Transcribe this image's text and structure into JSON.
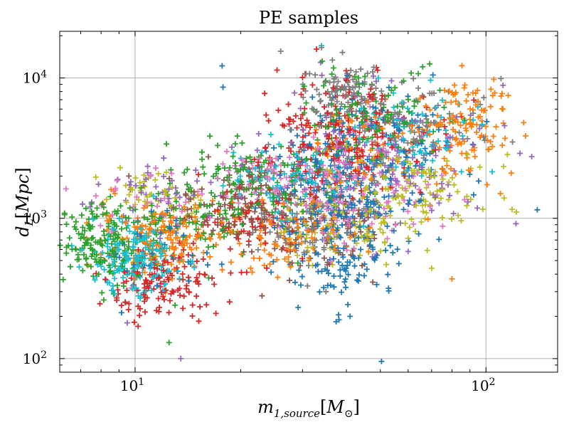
{
  "chart_data": {
    "type": "scatter",
    "title": "PE samples",
    "xlabel": "m_1,source [M_⊙]",
    "ylabel": "d_L [Mpc]",
    "xscale": "log",
    "yscale": "log",
    "xlim": [
      6.1,
      160
    ],
    "ylim": [
      80,
      21500
    ],
    "grid": true,
    "marker": "+",
    "x_ticks": [
      {
        "base": "10",
        "exp": "1",
        "value": 10
      },
      {
        "base": "10",
        "exp": "2",
        "value": 100
      }
    ],
    "y_ticks": [
      {
        "base": "10",
        "exp": "2",
        "value": 100
      },
      {
        "base": "10",
        "exp": "3",
        "value": 1000
      },
      {
        "base": "10",
        "exp": "4",
        "value": 10000
      }
    ],
    "series": [
      {
        "color": "#1f77b4",
        "clusters": [
          {
            "cx": 37,
            "cy": 1200,
            "sx": 0.1,
            "sy": 0.3,
            "n": 230
          },
          {
            "cx": 45,
            "cy": 2800,
            "sx": 0.12,
            "sy": 0.25,
            "n": 140
          },
          {
            "cx": 40,
            "cy": 450,
            "sx": 0.06,
            "sy": 0.12,
            "n": 50
          },
          {
            "cx": 12,
            "cy": 600,
            "sx": 0.1,
            "sy": 0.15,
            "n": 35
          }
        ],
        "points": [
          [
            17.7,
            12200
          ],
          [
            17.8,
            8600
          ],
          [
            41,
            200
          ],
          [
            38,
            205
          ],
          [
            140,
            1150
          ]
        ]
      },
      {
        "color": "#ff7f0e",
        "clusters": [
          {
            "cx": 85,
            "cy": 4500,
            "sx": 0.07,
            "sy": 0.16,
            "n": 120
          },
          {
            "cx": 12,
            "cy": 750,
            "sx": 0.09,
            "sy": 0.12,
            "n": 170
          },
          {
            "cx": 28,
            "cy": 800,
            "sx": 0.1,
            "sy": 0.14,
            "n": 90
          },
          {
            "cx": 45,
            "cy": 3000,
            "sx": 0.1,
            "sy": 0.2,
            "n": 80
          }
        ],
        "points": [
          [
            128,
            4800
          ],
          [
            118,
            2100
          ],
          [
            110,
            1500
          ],
          [
            80,
            370
          ],
          [
            102,
            3100
          ]
        ]
      },
      {
        "color": "#2ca02c",
        "clusters": [
          {
            "cx": 8,
            "cy": 650,
            "sx": 0.06,
            "sy": 0.14,
            "n": 170
          },
          {
            "cx": 22,
            "cy": 1800,
            "sx": 0.1,
            "sy": 0.15,
            "n": 130
          },
          {
            "cx": 48,
            "cy": 5500,
            "sx": 0.1,
            "sy": 0.16,
            "n": 110
          },
          {
            "cx": 14,
            "cy": 1000,
            "sx": 0.1,
            "sy": 0.14,
            "n": 80
          }
        ],
        "points": [
          [
            12.5,
            130
          ],
          [
            13,
            240
          ],
          [
            7,
            720
          ],
          [
            66,
            12000
          ]
        ]
      },
      {
        "color": "#d62728",
        "clusters": [
          {
            "cx": 12,
            "cy": 350,
            "sx": 0.07,
            "sy": 0.12,
            "n": 130
          },
          {
            "cx": 40,
            "cy": 4000,
            "sx": 0.11,
            "sy": 0.2,
            "n": 220
          },
          {
            "cx": 22,
            "cy": 1000,
            "sx": 0.1,
            "sy": 0.16,
            "n": 90
          }
        ],
        "points": [
          [
            10.2,
            170
          ],
          [
            11.5,
            220
          ],
          [
            17,
            210
          ]
        ]
      },
      {
        "color": "#9467bd",
        "clusters": [
          {
            "cx": 50,
            "cy": 2600,
            "sx": 0.14,
            "sy": 0.25,
            "n": 130
          },
          {
            "cx": 11,
            "cy": 1500,
            "sx": 0.1,
            "sy": 0.13,
            "n": 45
          }
        ],
        "points": [
          [
            13.5,
            100
          ],
          [
            9.5,
            180
          ],
          [
            135,
            2750
          ],
          [
            60,
            580
          ],
          [
            125,
            2900
          ]
        ]
      },
      {
        "color": "#8c564b",
        "clusters": [
          {
            "cx": 20,
            "cy": 1200,
            "sx": 0.09,
            "sy": 0.14,
            "n": 110
          },
          {
            "cx": 35,
            "cy": 900,
            "sx": 0.08,
            "sy": 0.16,
            "n": 70
          }
        ],
        "points": [
          [
            23,
            280
          ],
          [
            9.6,
            2000
          ],
          [
            9.7,
            1600
          ]
        ]
      },
      {
        "color": "#e377c2",
        "clusters": [
          {
            "cx": 40,
            "cy": 1800,
            "sx": 0.12,
            "sy": 0.22,
            "n": 160
          },
          {
            "cx": 25,
            "cy": 2000,
            "sx": 0.1,
            "sy": 0.1,
            "n": 40
          },
          {
            "cx": 11,
            "cy": 1200,
            "sx": 0.09,
            "sy": 0.12,
            "n": 35
          }
        ],
        "points": [
          [
            60,
            2200
          ],
          [
            27,
            1950
          ]
        ]
      },
      {
        "color": "#7f7f7f",
        "clusters": [
          {
            "cx": 38,
            "cy": 8000,
            "sx": 0.05,
            "sy": 0.08,
            "n": 70
          },
          {
            "cx": 55,
            "cy": 5000,
            "sx": 0.12,
            "sy": 0.15,
            "n": 110
          },
          {
            "cx": 32,
            "cy": 900,
            "sx": 0.08,
            "sy": 0.18,
            "n": 70
          }
        ],
        "points": [
          [
            26,
            15500
          ],
          [
            34,
            16500
          ],
          [
            39,
            15200
          ],
          [
            31,
            330
          ],
          [
            35,
            300
          ]
        ]
      },
      {
        "color": "#bcbd22",
        "clusters": [
          {
            "cx": 40,
            "cy": 900,
            "sx": 0.1,
            "sy": 0.15,
            "n": 100
          },
          {
            "cx": 65,
            "cy": 1500,
            "sx": 0.1,
            "sy": 0.16,
            "n": 100
          },
          {
            "cx": 11,
            "cy": 1500,
            "sx": 0.08,
            "sy": 0.1,
            "n": 45
          }
        ],
        "points": [
          [
            70,
            440
          ],
          [
            68,
            590
          ],
          [
            60,
            720
          ]
        ]
      },
      {
        "color": "#17becf",
        "clusters": [
          {
            "cx": 10,
            "cy": 500,
            "sx": 0.06,
            "sy": 0.12,
            "n": 180
          },
          {
            "cx": 28,
            "cy": 2000,
            "sx": 0.09,
            "sy": 0.14,
            "n": 90
          },
          {
            "cx": 60,
            "cy": 4000,
            "sx": 0.1,
            "sy": 0.16,
            "n": 80
          }
        ],
        "points": [
          [
            34,
            17000
          ],
          [
            9.4,
            250
          ]
        ]
      }
    ]
  }
}
